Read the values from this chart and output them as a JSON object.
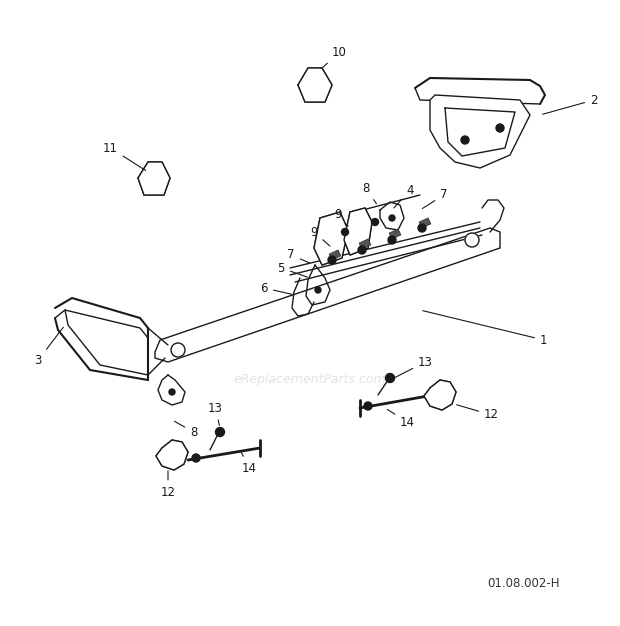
{
  "background_color": "#ffffff",
  "watermark": "eReplacementParts.com",
  "diagram_code": "01.08.002-H",
  "label_fontsize": 8.5,
  "diagram_color": "#1a1a1a",
  "fig_width": 6.2,
  "fig_height": 6.26,
  "dpi": 100
}
